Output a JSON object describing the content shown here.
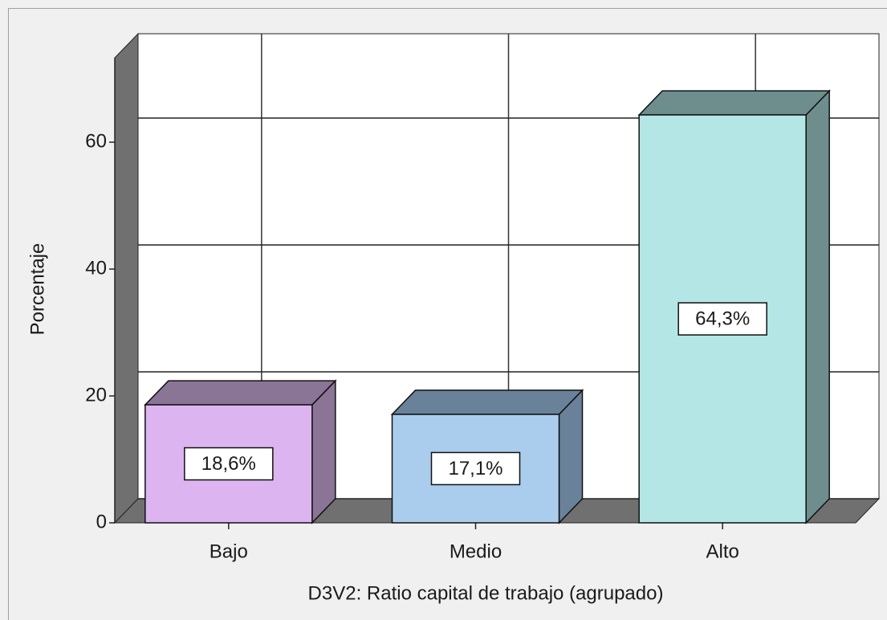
{
  "chart_data": {
    "type": "bar3d",
    "y_label": "Porcentaje",
    "x_label": "D3V2: Ratio capital de trabajo (agrupado)",
    "categories": [
      "Bajo",
      "Medio",
      "Alto"
    ],
    "values": [
      18.6,
      17.1,
      64.3
    ],
    "value_labels": [
      "18,6%",
      "17,1%",
      "64,3%"
    ],
    "colors": [
      "#dcb5f0",
      "#aacdee",
      "#b4e6e6"
    ],
    "shade_colors": [
      "#8a7596",
      "#6a8299",
      "#6e8e8e"
    ],
    "ylim": [
      0,
      73.3
    ],
    "yticks": [
      0,
      20,
      40,
      60
    ],
    "grid": true
  }
}
